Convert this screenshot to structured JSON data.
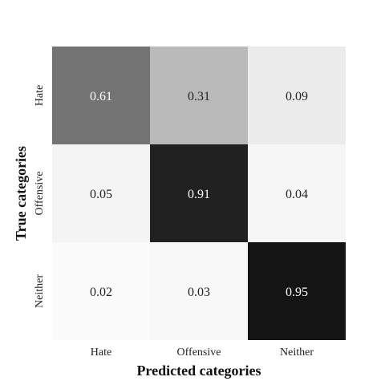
{
  "chart_data": {
    "type": "heatmap",
    "title": "",
    "xlabel": "Predicted categories",
    "ylabel": "True categories",
    "x_categories": [
      "Hate",
      "Offensive",
      "Neither"
    ],
    "y_categories": [
      "Hate",
      "Offensive",
      "Neither"
    ],
    "values": [
      [
        0.61,
        0.31,
        0.09
      ],
      [
        0.05,
        0.91,
        0.04
      ],
      [
        0.02,
        0.03,
        0.95
      ]
    ],
    "value_labels": [
      [
        "0.61",
        "0.31",
        "0.09"
      ],
      [
        "0.05",
        "0.91",
        "0.04"
      ],
      [
        "0.02",
        "0.03",
        "0.95"
      ]
    ],
    "colormap": "greys",
    "range": [
      0,
      1
    ],
    "colors": {
      "low": "#ffffff",
      "high": "#000000"
    },
    "grid": false,
    "legend": "none"
  }
}
